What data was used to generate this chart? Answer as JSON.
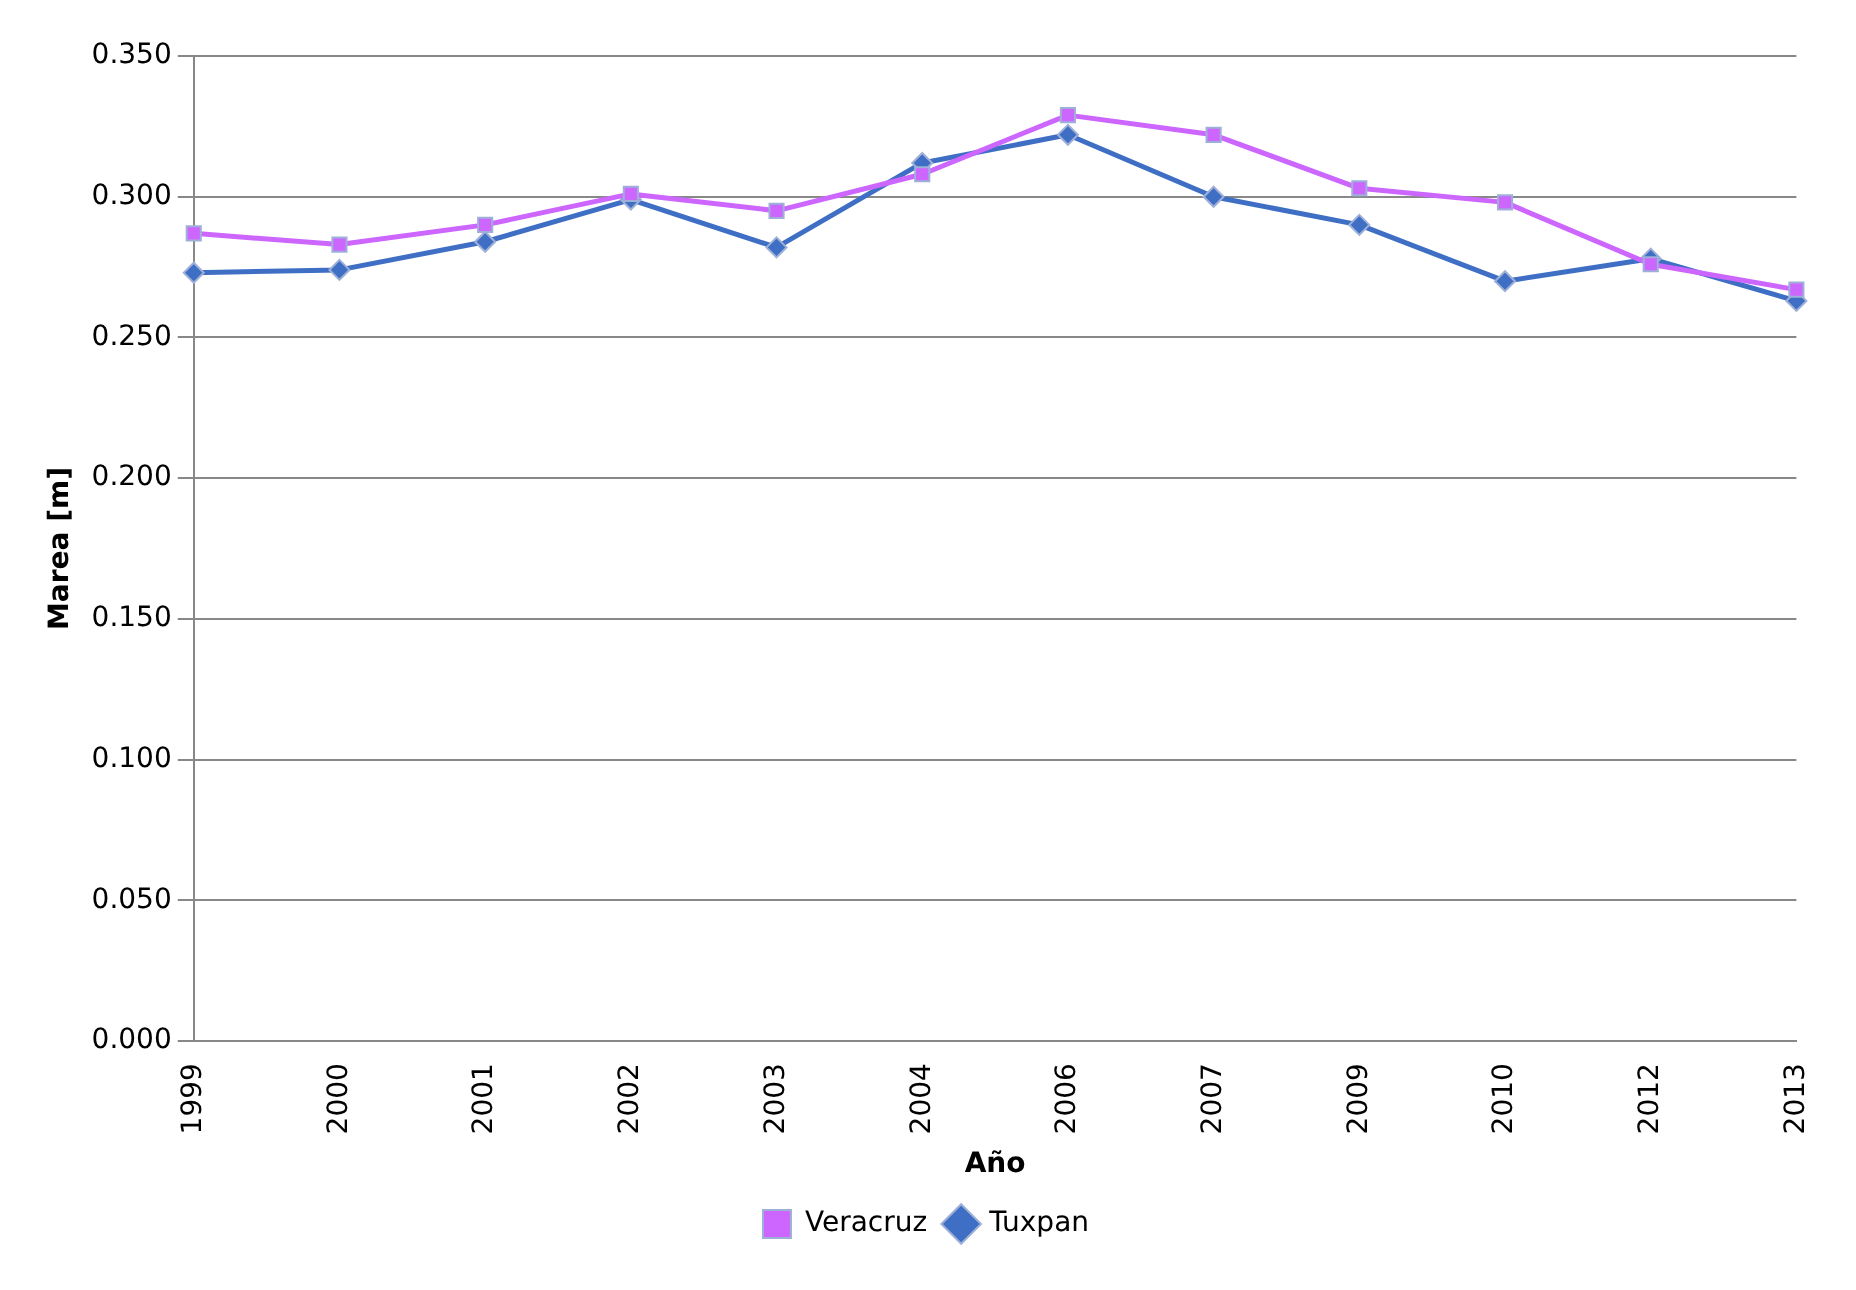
{
  "chart_data": {
    "type": "line",
    "xlabel": "Año",
    "ylabel": "Marea [m]",
    "categories": [
      "1999",
      "2000",
      "2001",
      "2002",
      "2003",
      "2004",
      "2006",
      "2007",
      "2009",
      "2010",
      "2012",
      "2013"
    ],
    "series": [
      {
        "name": "Tuxpan",
        "color": "#3f6fc4",
        "marker": "diamond",
        "values": [
          0.273,
          0.274,
          0.284,
          0.299,
          0.282,
          0.312,
          0.322,
          0.3,
          0.29,
          0.27,
          0.278,
          0.263
        ]
      },
      {
        "name": "Veracruz",
        "color": "#cc66ff",
        "marker": "square",
        "values": [
          0.287,
          0.283,
          0.29,
          0.301,
          0.295,
          0.308,
          0.329,
          0.322,
          0.303,
          0.298,
          0.276,
          0.267
        ]
      }
    ],
    "ylim": [
      0,
      0.35
    ],
    "yticks": [
      {
        "value": 0,
        "label": "0.000"
      },
      {
        "value": 0.05,
        "label": "0.050"
      },
      {
        "value": 0.1,
        "label": "0.100"
      },
      {
        "value": 0.15,
        "label": "0.150"
      },
      {
        "value": 0.2,
        "label": "0.200"
      },
      {
        "value": 0.25,
        "label": "0.250"
      },
      {
        "value": 0.3,
        "label": "0.300"
      },
      {
        "value": 0.35,
        "label": "0.350"
      }
    ],
    "grid": "y",
    "legend": "bottom",
    "line_style": "solid"
  }
}
